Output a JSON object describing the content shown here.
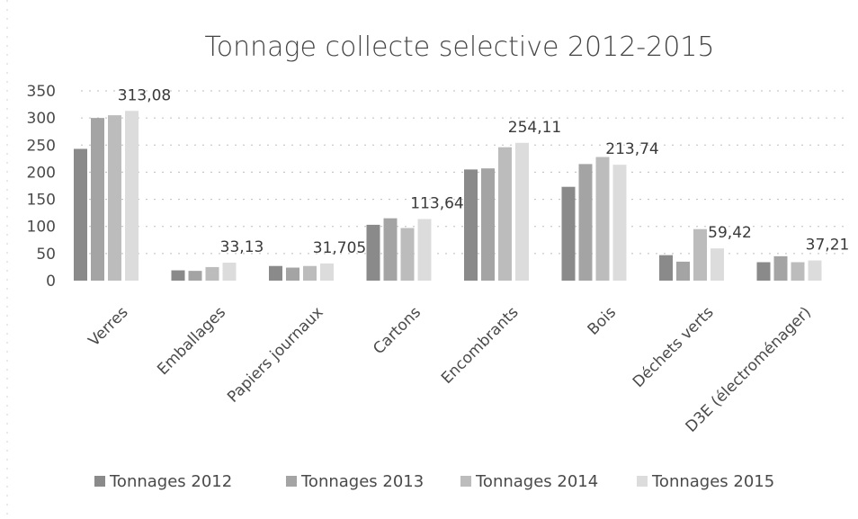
{
  "chart_data": {
    "type": "bar",
    "title": "Tonnage collecte selective 2012-2015",
    "xlabel": "",
    "ylabel": "",
    "ylim": [
      0,
      350
    ],
    "yticks": [
      0,
      50,
      100,
      150,
      200,
      250,
      300,
      350
    ],
    "grid": true,
    "legend_position": "bottom",
    "categories": [
      "Verres",
      "Emballages",
      "Papiers journaux",
      "Cartons",
      "Encombrants",
      "Bois",
      "Déchets verts",
      "D3E (électroménager)"
    ],
    "series": [
      {
        "name": "Tonnages 2012",
        "color": "#8a8a8a",
        "values": [
          243,
          19,
          27,
          103,
          205,
          173,
          47,
          34
        ]
      },
      {
        "name": "Tonnages 2013",
        "color": "#a4a4a4",
        "values": [
          300,
          18,
          24,
          115,
          207,
          215,
          35,
          45
        ]
      },
      {
        "name": "Tonnages 2014",
        "color": "#bcbcbc",
        "values": [
          305,
          25,
          27,
          97,
          246,
          228,
          95,
          34
        ]
      },
      {
        "name": "Tonnages 2015",
        "color": "#dcdcdc",
        "values": [
          313.08,
          33.13,
          31.705,
          113.64,
          254.11,
          213.74,
          59.42,
          37.21
        ]
      }
    ],
    "data_labels": [
      "313,08",
      "33,13",
      "31,705",
      "113,64",
      "254,11",
      "213,74",
      "59,42",
      "37,21"
    ]
  }
}
